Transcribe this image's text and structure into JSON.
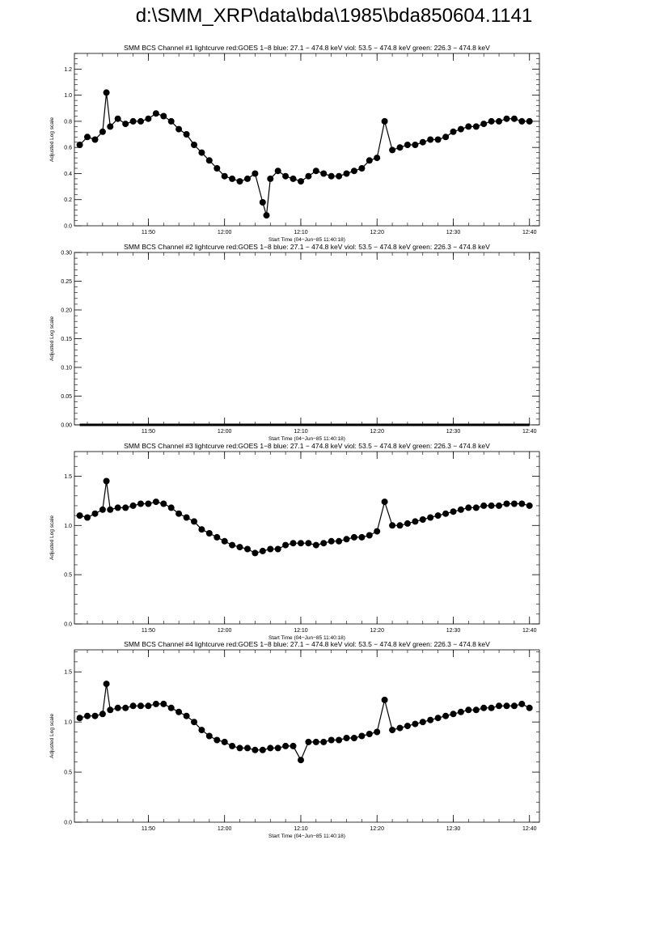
{
  "page": {
    "title": "d:\\SMM_XRP\\data\\bda\\1985\\bda850604.1141"
  },
  "chart_data": [
    {
      "type": "scatter",
      "title": "SMM BCS Channel #1 lightcurve  red:GOES 1−8  blue: 27.1 − 474.8 keV  viol: 53.5 − 474.8 keV  green: 226.3 − 474.8 keV",
      "xlabel": "Start Time (04−Jun−85 11:40:18)",
      "ylabel": "Adjusted Log scale",
      "xlim": [
        "11:40:18",
        "12:41:18"
      ],
      "ylim": [
        0.0,
        1.32
      ],
      "x_ticks": [
        "11:50",
        "12:00",
        "12:10",
        "12:20",
        "12:30",
        "12:40"
      ],
      "y_ticks": [
        "0.0",
        "0.2",
        "0.4",
        "0.6",
        "0.8",
        "1.0",
        "1.2"
      ],
      "series": [
        {
          "x": [
            "11:41",
            "11:42",
            "11:43",
            "11:44",
            "11:44:30",
            "11:45",
            "11:46",
            "11:47",
            "11:48",
            "11:49",
            "11:50",
            "11:51",
            "11:52",
            "11:53",
            "11:54",
            "11:55",
            "11:56",
            "11:57",
            "11:58",
            "11:59",
            "12:00",
            "12:01",
            "12:02",
            "12:03",
            "12:04",
            "12:05",
            "12:05:30",
            "12:06",
            "12:07",
            "12:08",
            "12:09",
            "12:10",
            "12:11",
            "12:12",
            "12:13",
            "12:14",
            "12:15",
            "12:16",
            "12:17",
            "12:18",
            "12:19",
            "12:20",
            "12:21",
            "12:22",
            "12:23",
            "12:24",
            "12:25",
            "12:26",
            "12:27",
            "12:28",
            "12:29",
            "12:30",
            "12:31",
            "12:32",
            "12:33",
            "12:34",
            "12:35",
            "12:36",
            "12:37",
            "12:38",
            "12:39",
            "12:40"
          ],
          "y": [
            0.62,
            0.68,
            0.66,
            0.72,
            1.02,
            0.76,
            0.82,
            0.78,
            0.8,
            0.8,
            0.82,
            0.86,
            0.84,
            0.8,
            0.74,
            0.7,
            0.62,
            0.56,
            0.5,
            0.44,
            0.38,
            0.36,
            0.34,
            0.36,
            0.4,
            0.18,
            0.08,
            0.36,
            0.42,
            0.38,
            0.36,
            0.34,
            0.38,
            0.42,
            0.4,
            0.38,
            0.38,
            0.4,
            0.42,
            0.44,
            0.5,
            0.52,
            0.8,
            0.58,
            0.6,
            0.62,
            0.62,
            0.64,
            0.66,
            0.66,
            0.68,
            0.72,
            0.74,
            0.76,
            0.76,
            0.78,
            0.8,
            0.8,
            0.82,
            0.82,
            0.8,
            0.8
          ]
        }
      ]
    },
    {
      "type": "scatter",
      "title": "SMM BCS Channel #2 lightcurve  red:GOES 1−8  blue: 27.1 − 474.8 keV  viol: 53.5 − 474.8 keV  green: 226.3 − 474.8 keV",
      "xlabel": "Start Time (04−Jun−85 11:40:18)",
      "ylabel": "Adjusted Log scale",
      "xlim": [
        "11:40:18",
        "12:41:18"
      ],
      "ylim": [
        0.0,
        0.3
      ],
      "x_ticks": [
        "11:50",
        "12:00",
        "12:10",
        "12:20",
        "12:30",
        "12:40"
      ],
      "y_ticks": [
        "0.00",
        "0.05",
        "0.10",
        "0.15",
        "0.20",
        "0.25",
        "0.30"
      ],
      "series": [
        {
          "x": [
            "11:41",
            "12:40"
          ],
          "y": [
            0.0,
            0.0
          ]
        }
      ]
    },
    {
      "type": "scatter",
      "title": "SMM BCS Channel #3 lightcurve  red:GOES 1−8  blue: 27.1 − 474.8 keV  viol: 53.5 − 474.8 keV  green: 226.3 − 474.8 keV",
      "xlabel": "Start Time (04−Jun−85 11:40:18)",
      "ylabel": "Adjusted Log scale",
      "xlim": [
        "11:40:18",
        "12:41:18"
      ],
      "ylim": [
        0.0,
        1.75
      ],
      "x_ticks": [
        "11:50",
        "12:00",
        "12:10",
        "12:20",
        "12:30",
        "12:40"
      ],
      "y_ticks": [
        "0.0",
        "0.5",
        "1.0",
        "1.5"
      ],
      "series": [
        {
          "x": [
            "11:41",
            "11:42",
            "11:43",
            "11:44",
            "11:44:30",
            "11:45",
            "11:46",
            "11:47",
            "11:48",
            "11:49",
            "11:50",
            "11:51",
            "11:52",
            "11:53",
            "11:54",
            "11:55",
            "11:56",
            "11:57",
            "11:58",
            "11:59",
            "12:00",
            "12:01",
            "12:02",
            "12:03",
            "12:04",
            "12:05",
            "12:06",
            "12:07",
            "12:08",
            "12:09",
            "12:10",
            "12:11",
            "12:12",
            "12:13",
            "12:14",
            "12:15",
            "12:16",
            "12:17",
            "12:18",
            "12:19",
            "12:20",
            "12:21",
            "12:22",
            "12:23",
            "12:24",
            "12:25",
            "12:26",
            "12:27",
            "12:28",
            "12:29",
            "12:30",
            "12:31",
            "12:32",
            "12:33",
            "12:34",
            "12:35",
            "12:36",
            "12:37",
            "12:38",
            "12:39",
            "12:40"
          ],
          "y": [
            1.1,
            1.08,
            1.12,
            1.16,
            1.45,
            1.16,
            1.18,
            1.18,
            1.2,
            1.22,
            1.22,
            1.24,
            1.22,
            1.18,
            1.12,
            1.08,
            1.04,
            0.96,
            0.92,
            0.88,
            0.84,
            0.8,
            0.78,
            0.76,
            0.72,
            0.74,
            0.76,
            0.76,
            0.8,
            0.82,
            0.82,
            0.82,
            0.8,
            0.82,
            0.84,
            0.84,
            0.86,
            0.88,
            0.88,
            0.9,
            0.94,
            1.24,
            1.0,
            1.0,
            1.02,
            1.04,
            1.06,
            1.08,
            1.1,
            1.12,
            1.14,
            1.16,
            1.18,
            1.18,
            1.2,
            1.2,
            1.2,
            1.22,
            1.22,
            1.22,
            1.2
          ]
        }
      ]
    },
    {
      "type": "scatter",
      "title": "SMM BCS Channel #4 lightcurve  red:GOES 1−8  blue: 27.1 − 474.8 keV  viol: 53.5 − 474.8 keV  green: 226.3 − 474.8 keV",
      "xlabel": "Start Time (04−Jun−85 11:40:18)",
      "ylabel": "Adjusted Log scale",
      "xlim": [
        "11:40:18",
        "12:41:18"
      ],
      "ylim": [
        0.0,
        1.72
      ],
      "x_ticks": [
        "11:50",
        "12:00",
        "12:10",
        "12:20",
        "12:30",
        "12:40"
      ],
      "y_ticks": [
        "0.0",
        "0.5",
        "1.0",
        "1.5"
      ],
      "series": [
        {
          "x": [
            "11:41",
            "11:42",
            "11:43",
            "11:44",
            "11:44:30",
            "11:45",
            "11:46",
            "11:47",
            "11:48",
            "11:49",
            "11:50",
            "11:51",
            "11:52",
            "11:53",
            "11:54",
            "11:55",
            "11:56",
            "11:57",
            "11:58",
            "11:59",
            "12:00",
            "12:01",
            "12:02",
            "12:03",
            "12:04",
            "12:05",
            "12:06",
            "12:07",
            "12:08",
            "12:09",
            "12:10",
            "12:11",
            "12:12",
            "12:13",
            "12:14",
            "12:15",
            "12:16",
            "12:17",
            "12:18",
            "12:19",
            "12:20",
            "12:21",
            "12:22",
            "12:23",
            "12:24",
            "12:25",
            "12:26",
            "12:27",
            "12:28",
            "12:29",
            "12:30",
            "12:31",
            "12:32",
            "12:33",
            "12:34",
            "12:35",
            "12:36",
            "12:37",
            "12:38",
            "12:39",
            "12:40"
          ],
          "y": [
            1.04,
            1.06,
            1.06,
            1.08,
            1.38,
            1.12,
            1.14,
            1.14,
            1.16,
            1.16,
            1.16,
            1.18,
            1.18,
            1.14,
            1.1,
            1.06,
            1.0,
            0.92,
            0.86,
            0.82,
            0.8,
            0.76,
            0.74,
            0.74,
            0.72,
            0.72,
            0.74,
            0.74,
            0.76,
            0.76,
            0.62,
            0.8,
            0.8,
            0.8,
            0.82,
            0.82,
            0.84,
            0.84,
            0.86,
            0.88,
            0.9,
            1.22,
            0.92,
            0.94,
            0.96,
            0.98,
            1.0,
            1.02,
            1.04,
            1.06,
            1.08,
            1.1,
            1.12,
            1.12,
            1.14,
            1.14,
            1.16,
            1.16,
            1.16,
            1.18,
            1.14
          ]
        }
      ]
    }
  ]
}
